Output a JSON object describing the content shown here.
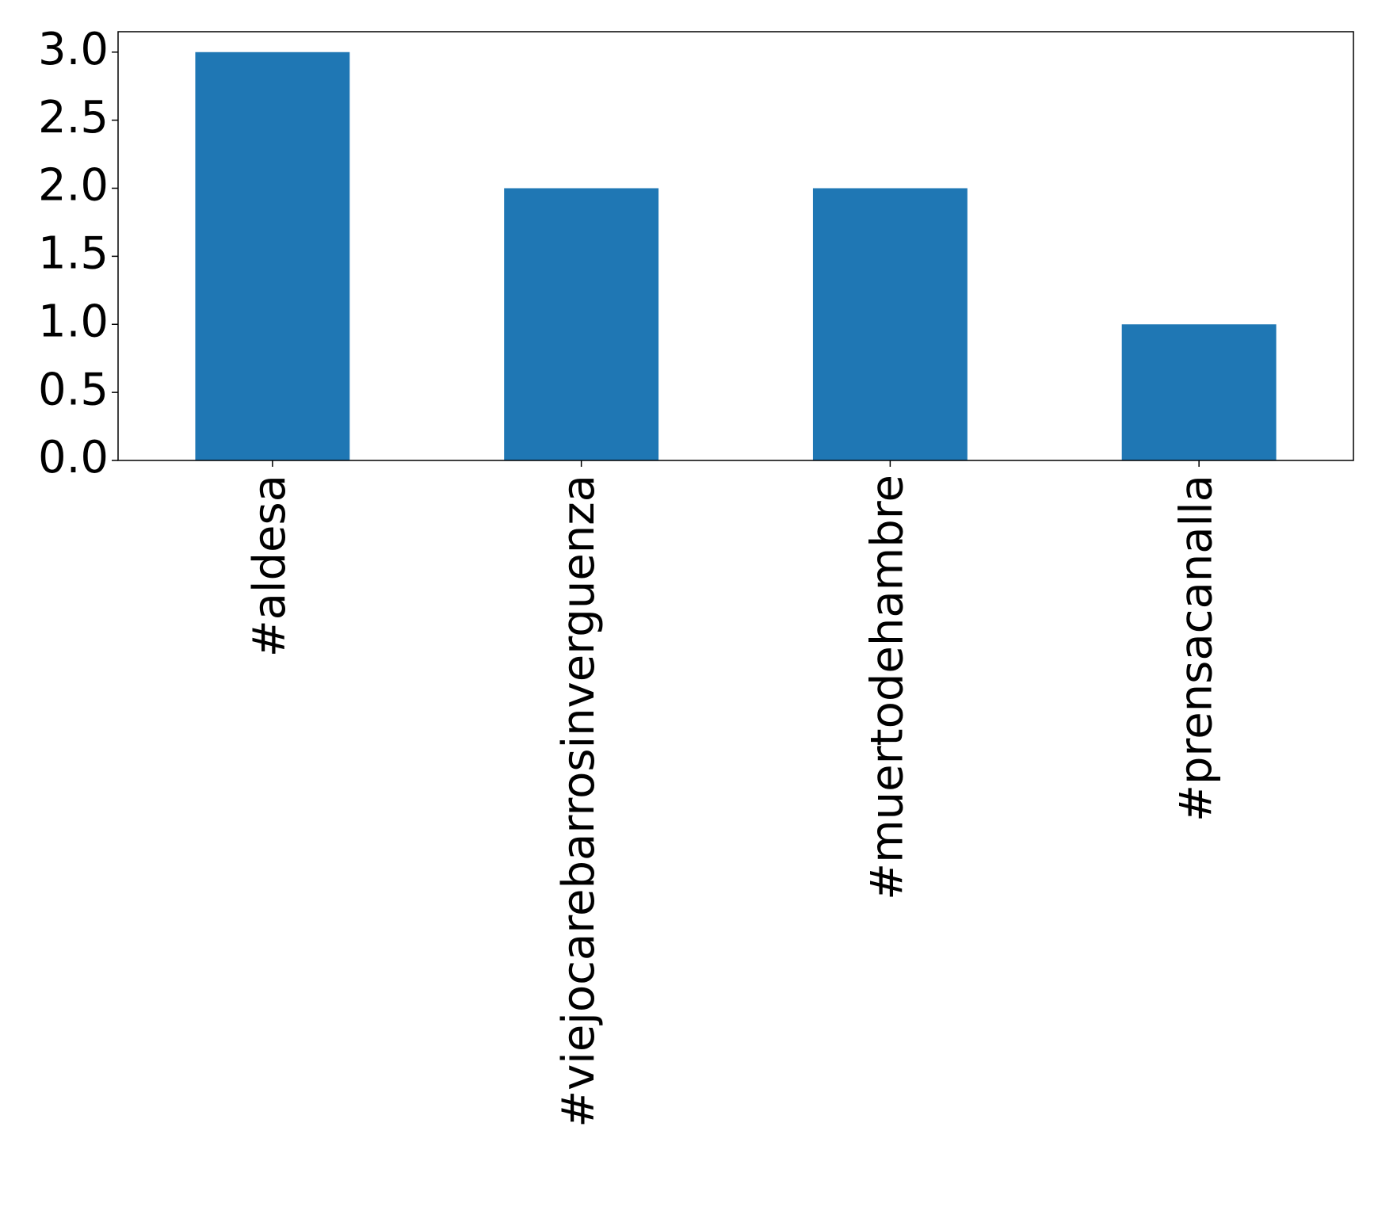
{
  "chart_data": {
    "type": "bar",
    "categories": [
      "#aldesa",
      "#viejocarebarrosinverguenza",
      "#muertodehambre",
      "#prensacanalla"
    ],
    "values": [
      3,
      2,
      2,
      1
    ],
    "color": "#1f77b4",
    "ylim": [
      0,
      3.15
    ],
    "yticks": [
      {
        "value": 0,
        "label": "0.0"
      },
      0.5,
      {
        "value": 1,
        "label": "1.0"
      },
      1.5,
      {
        "value": 2,
        "label": "2.0"
      },
      2.5,
      {
        "value": 3,
        "label": "3.0"
      }
    ],
    "grid": false
  }
}
